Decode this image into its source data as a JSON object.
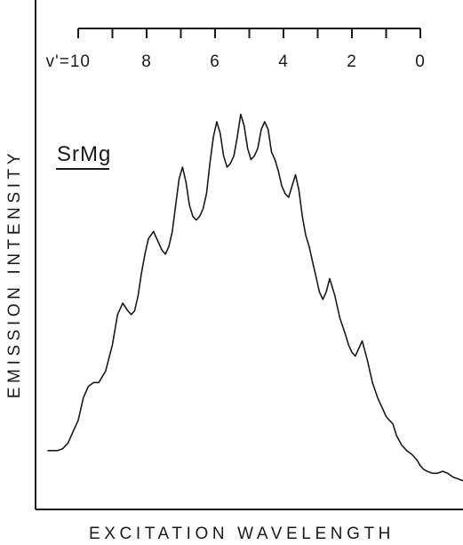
{
  "chart_data": {
    "type": "line",
    "title": "",
    "subtitle": "SrMg",
    "xlabel": "EXCITATION WAVELENGTH",
    "ylabel": "EMISSION INTENSITY",
    "x_axis_ticks": false,
    "y_axis_ticks": false,
    "grid": false,
    "legend": "none",
    "top_scale": {
      "label_prefix": "v'=",
      "levels": [
        10,
        9,
        8,
        7,
        6,
        5,
        4,
        3,
        2,
        1,
        0
      ],
      "labeled_levels": [
        "10",
        "8",
        "6",
        "4",
        "2",
        "0"
      ]
    },
    "xlim": [
      -0.9,
      12.4
    ],
    "ylim": [
      0,
      1
    ],
    "series": [
      {
        "x": [
          -0.9,
          -0.75,
          -0.6,
          -0.45,
          -0.3,
          -0.15,
          0.0,
          0.15,
          0.3,
          0.45,
          0.6,
          0.8,
          1.0,
          1.15,
          1.3,
          1.45,
          1.55,
          1.65,
          1.75,
          1.85,
          1.95,
          2.05,
          2.2,
          2.35,
          2.45,
          2.55,
          2.65,
          2.75,
          2.85,
          2.95,
          3.05,
          3.15,
          3.25,
          3.35,
          3.45,
          3.55,
          3.65,
          3.75,
          3.85,
          3.95,
          4.05,
          4.15,
          4.25,
          4.35,
          4.45,
          4.55,
          4.65,
          4.75,
          4.85,
          4.95,
          5.05,
          5.15,
          5.25,
          5.35,
          5.45,
          5.55,
          5.65,
          5.75,
          5.85,
          5.95,
          6.05,
          6.15,
          6.25,
          6.35,
          6.45,
          6.55,
          6.65,
          6.75,
          6.85,
          6.95,
          7.05,
          7.15,
          7.25,
          7.35,
          7.5,
          7.65,
          7.8,
          7.9,
          8.0,
          8.1,
          8.2,
          8.3,
          8.45,
          8.6,
          8.75,
          8.9,
          9.0,
          9.1,
          9.2,
          9.3,
          9.45,
          9.6,
          9.75,
          9.9,
          10.0,
          10.1,
          10.2,
          10.35,
          10.5,
          10.65,
          10.8,
          10.95,
          11.1,
          11.25,
          11.4,
          11.55,
          11.7,
          11.85,
          12.0,
          12.15,
          12.3,
          12.4
        ],
        "y": [
          0.09,
          0.09,
          0.09,
          0.095,
          0.11,
          0.14,
          0.17,
          0.23,
          0.26,
          0.27,
          0.27,
          0.3,
          0.37,
          0.45,
          0.48,
          0.46,
          0.45,
          0.46,
          0.5,
          0.56,
          0.61,
          0.65,
          0.67,
          0.64,
          0.62,
          0.61,
          0.63,
          0.67,
          0.74,
          0.81,
          0.84,
          0.8,
          0.74,
          0.71,
          0.7,
          0.71,
          0.73,
          0.77,
          0.85,
          0.92,
          0.96,
          0.93,
          0.87,
          0.84,
          0.85,
          0.87,
          0.92,
          0.98,
          0.95,
          0.89,
          0.86,
          0.87,
          0.89,
          0.94,
          0.96,
          0.94,
          0.88,
          0.86,
          0.83,
          0.79,
          0.77,
          0.76,
          0.79,
          0.82,
          0.78,
          0.71,
          0.66,
          0.63,
          0.59,
          0.55,
          0.51,
          0.49,
          0.51,
          0.545,
          0.5,
          0.44,
          0.4,
          0.37,
          0.35,
          0.34,
          0.36,
          0.38,
          0.33,
          0.27,
          0.23,
          0.2,
          0.18,
          0.17,
          0.16,
          0.13,
          0.105,
          0.09,
          0.08,
          0.065,
          0.05,
          0.04,
          0.035,
          0.03,
          0.03,
          0.035,
          0.03,
          0.02,
          0.015,
          0.01,
          0.01,
          0.005,
          0.005,
          0.005,
          0.0,
          0.0,
          0.0,
          0.0
        ]
      }
    ]
  }
}
